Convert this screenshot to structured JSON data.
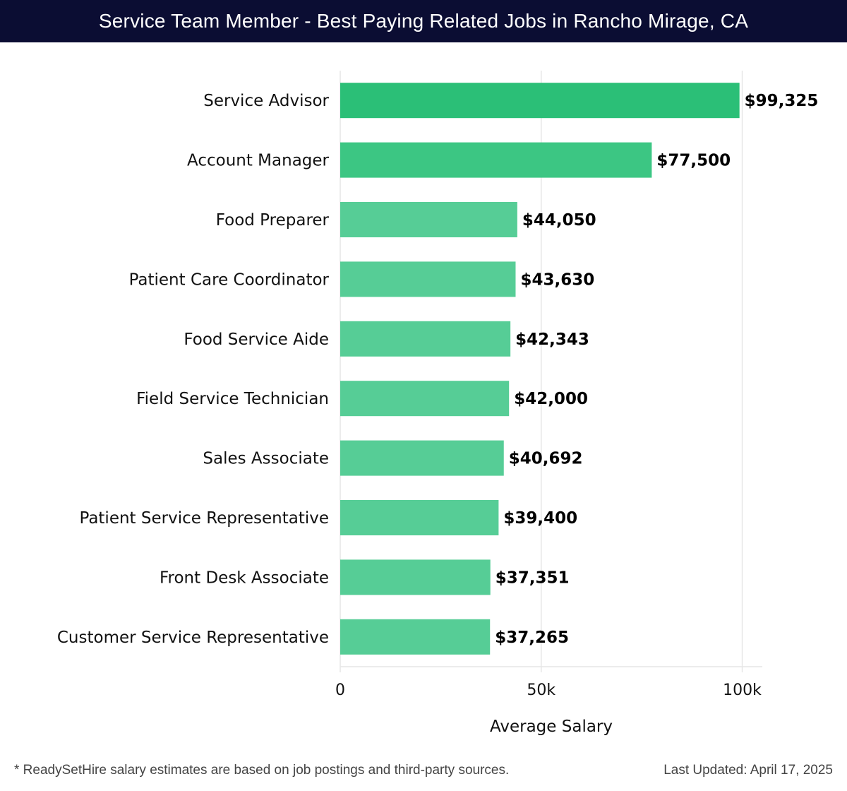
{
  "header": {
    "title": "Service Team Member - Best Paying Related Jobs in Rancho Mirage, CA"
  },
  "footer": {
    "note": "* ReadySetHire salary estimates are based on job postings and third-party sources.",
    "updated": "Last Updated: April 17, 2025"
  },
  "colors": {
    "header_bg": "#0b0d33",
    "bar_top": "#2bbf77",
    "bar_second": "#3cc683",
    "bar_rest": "#56cd96",
    "grid": "#e6e6e6"
  },
  "chart_data": {
    "type": "bar",
    "orientation": "horizontal",
    "categories": [
      "Service Advisor",
      "Account Manager",
      "Food Preparer",
      "Patient Care Coordinator",
      "Food Service Aide",
      "Field Service Technician",
      "Sales Associate",
      "Patient Service Representative",
      "Front Desk Associate",
      "Customer Service Representative"
    ],
    "values": [
      99325,
      77500,
      44050,
      43630,
      42343,
      42000,
      40692,
      39400,
      37351,
      37265
    ],
    "value_labels": [
      "$99,325",
      "$77,500",
      "$44,050",
      "$43,630",
      "$42,343",
      "$42,000",
      "$40,692",
      "$39,400",
      "$37,351",
      "$37,265"
    ],
    "xlabel": "Average Salary",
    "ylabel": "",
    "xlim": [
      0,
      105000
    ],
    "xticks": [
      0,
      50000,
      100000
    ],
    "xtick_labels": [
      "0",
      "50k",
      "100k"
    ],
    "grid": true
  }
}
